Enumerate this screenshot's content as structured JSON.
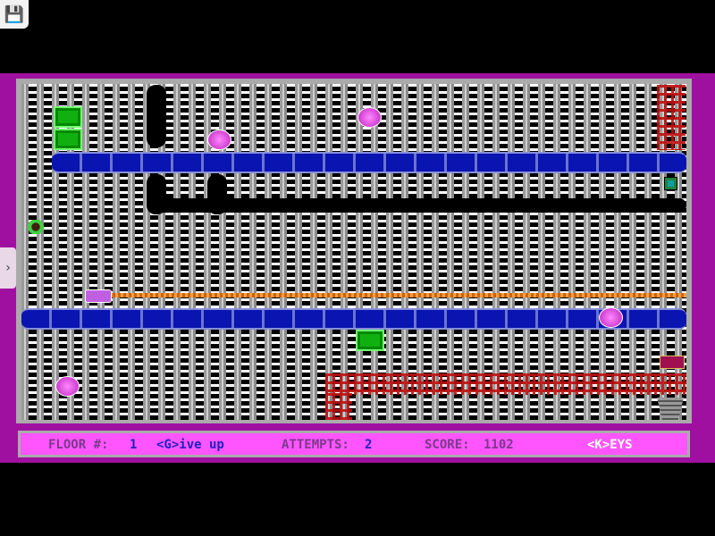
{
  "status": {
    "floor_label": "FLOOR #:",
    "floor": "1",
    "give_up": "<G>ive up",
    "attempts_label": "ATTEMPTS:",
    "attempts": "2",
    "score_label": "SCORE:",
    "score": "1102",
    "keys": "<K>EYS"
  },
  "colors": {
    "frame": "#a010a0",
    "status_bg": "#ff55ff",
    "conveyor": "#0a14b0",
    "block": "#10b010",
    "ball": "#ff88ff",
    "ladder": "#c01010"
  },
  "icons": {
    "save": "floppy-disk-icon",
    "side_tab": "chevron-right-icon"
  }
}
